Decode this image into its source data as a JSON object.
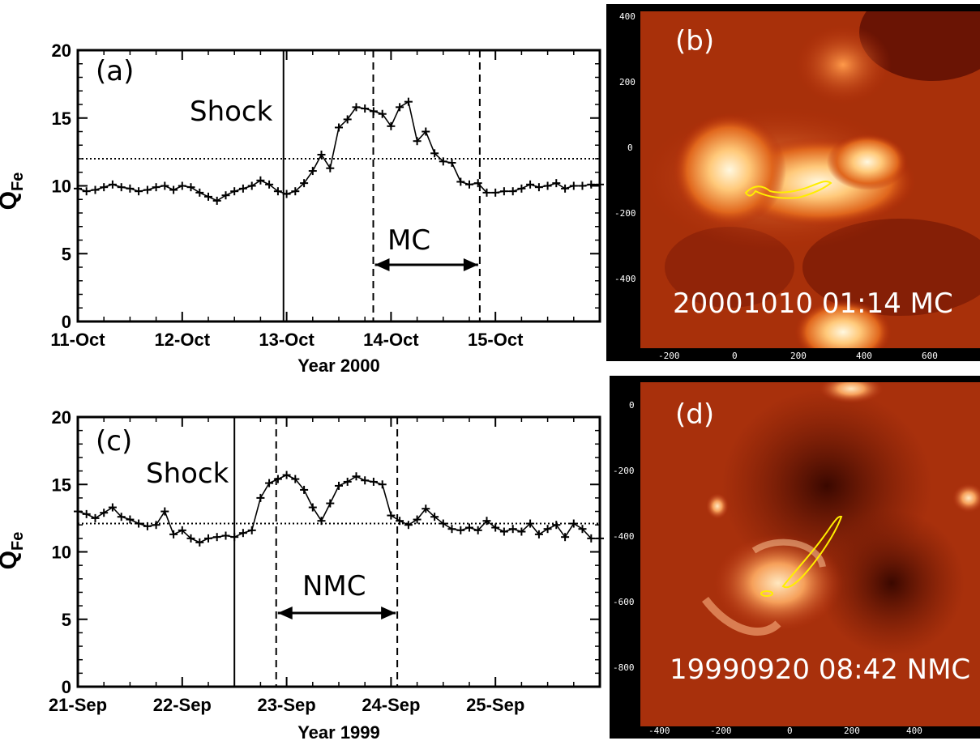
{
  "chart_data": [
    {
      "panel": "(a)",
      "type": "line",
      "ylabel": "Q",
      "ylabel_sub": "Fe",
      "xlabel": "Year 2000",
      "x_tick_labels": [
        "11-Oct",
        "12-Oct",
        "13-Oct",
        "14-Oct",
        "15-Oct"
      ],
      "x_tick_days": [
        0,
        1,
        2,
        3,
        4
      ],
      "xlim_days": [
        0,
        5
      ],
      "ylim": [
        0,
        20
      ],
      "y_ticks": [
        0,
        5,
        10,
        15,
        20
      ],
      "threshold": 12,
      "shock_label": "Shock",
      "shock_day": 1.97,
      "region_label": "MC",
      "region_start_day": 2.83,
      "region_end_day": 3.85,
      "series": [
        {
          "x_days": [
            0,
            0.083,
            0.167,
            0.25,
            0.333,
            0.417,
            0.5,
            0.583,
            0.667,
            0.75,
            0.833,
            0.917,
            1,
            1.083,
            1.167,
            1.25,
            1.333,
            1.417,
            1.5,
            1.583,
            1.667,
            1.75,
            1.833,
            1.917,
            2,
            2.083,
            2.167,
            2.25,
            2.333,
            2.417,
            2.5,
            2.583,
            2.667,
            2.75,
            2.833,
            2.917,
            3,
            3.083,
            3.167,
            3.25,
            3.333,
            3.417,
            3.5,
            3.583,
            3.667,
            3.75,
            3.833,
            3.917,
            4,
            4.083,
            4.167,
            4.25,
            4.333,
            4.417,
            4.5,
            4.583,
            4.667,
            4.75,
            4.833,
            4.917,
            5
          ],
          "values": [
            9.8,
            9.6,
            9.7,
            9.9,
            10.1,
            9.9,
            9.8,
            9.6,
            9.7,
            9.9,
            10.0,
            9.7,
            10.0,
            9.9,
            9.5,
            9.2,
            8.9,
            9.3,
            9.6,
            9.8,
            10.0,
            10.4,
            10.1,
            9.6,
            9.4,
            9.6,
            10.2,
            11.1,
            12.3,
            11.3,
            14.3,
            14.9,
            15.8,
            15.7,
            15.5,
            15.3,
            14.4,
            15.8,
            16.2,
            13.3,
            14.0,
            12.4,
            11.8,
            11.7,
            10.3,
            10.1,
            10.2,
            9.5,
            9.5,
            9.6,
            9.6,
            9.8,
            10.1,
            9.9,
            10.0,
            10.2,
            9.8,
            10.0,
            10.0,
            10.1,
            10.1
          ]
        }
      ]
    },
    {
      "panel": "(c)",
      "type": "line",
      "ylabel": "Q",
      "ylabel_sub": "Fe",
      "xlabel": "Year 1999",
      "x_tick_labels": [
        "21-Sep",
        "22-Sep",
        "23-Sep",
        "24-Sep",
        "25-Sep"
      ],
      "x_tick_days": [
        0,
        1,
        2,
        3,
        4
      ],
      "xlim_days": [
        0,
        5
      ],
      "ylim": [
        0,
        20
      ],
      "y_ticks": [
        0,
        5,
        10,
        15,
        20
      ],
      "threshold": 12.1,
      "shock_label": "Shock",
      "shock_day": 1.5,
      "region_label": "NMC",
      "region_start_day": 1.9,
      "region_end_day": 3.06,
      "series": [
        {
          "x_days": [
            0,
            0.083,
            0.167,
            0.25,
            0.333,
            0.417,
            0.5,
            0.583,
            0.667,
            0.75,
            0.833,
            0.917,
            1,
            1.083,
            1.167,
            1.25,
            1.333,
            1.417,
            1.5,
            1.583,
            1.667,
            1.75,
            1.833,
            1.917,
            2,
            2.083,
            2.167,
            2.25,
            2.333,
            2.417,
            2.5,
            2.583,
            2.667,
            2.75,
            2.833,
            2.917,
            3,
            3.083,
            3.167,
            3.25,
            3.333,
            3.417,
            3.5,
            3.583,
            3.667,
            3.75,
            3.833,
            3.917,
            4,
            4.083,
            4.167,
            4.25,
            4.333,
            4.417,
            4.5,
            4.583,
            4.667,
            4.75,
            4.833,
            4.917,
            5
          ],
          "values": [
            13.0,
            12.8,
            12.5,
            12.9,
            13.3,
            12.6,
            12.4,
            12.1,
            11.9,
            12.0,
            13.0,
            11.3,
            11.6,
            11.0,
            10.7,
            11.0,
            11.1,
            11.2,
            11.1,
            11.4,
            11.6,
            14.0,
            15.1,
            15.4,
            15.7,
            15.4,
            14.6,
            13.3,
            12.3,
            13.6,
            14.9,
            15.2,
            15.6,
            15.3,
            15.2,
            15.0,
            12.7,
            12.3,
            12.0,
            12.4,
            13.2,
            12.6,
            12.1,
            11.7,
            11.6,
            11.8,
            11.6,
            12.3,
            11.8,
            11.5,
            11.7,
            11.5,
            12.1,
            11.3,
            11.7,
            12.0,
            11.1,
            12.1,
            11.7,
            11.0,
            11.0
          ]
        }
      ]
    }
  ],
  "images": [
    {
      "panel": "(b)",
      "stamp": "20001010 01:14 MC",
      "y_ticks": [
        "400",
        "200",
        "0",
        "-200",
        "-400"
      ],
      "x_ticks": [
        "-200",
        "0",
        "200",
        "400",
        "600"
      ]
    },
    {
      "panel": "(d)",
      "stamp": "19990920 08:42 NMC",
      "y_ticks": [
        "0",
        "-200",
        "-400",
        "-600",
        "-800"
      ],
      "x_ticks": [
        "-400",
        "-200",
        "0",
        "200",
        "400"
      ]
    }
  ],
  "colors": {
    "contour": "#ffee00",
    "image_dark": "#4a0a00",
    "image_mid": "#b32a08",
    "image_bright": "#fff2cc"
  }
}
